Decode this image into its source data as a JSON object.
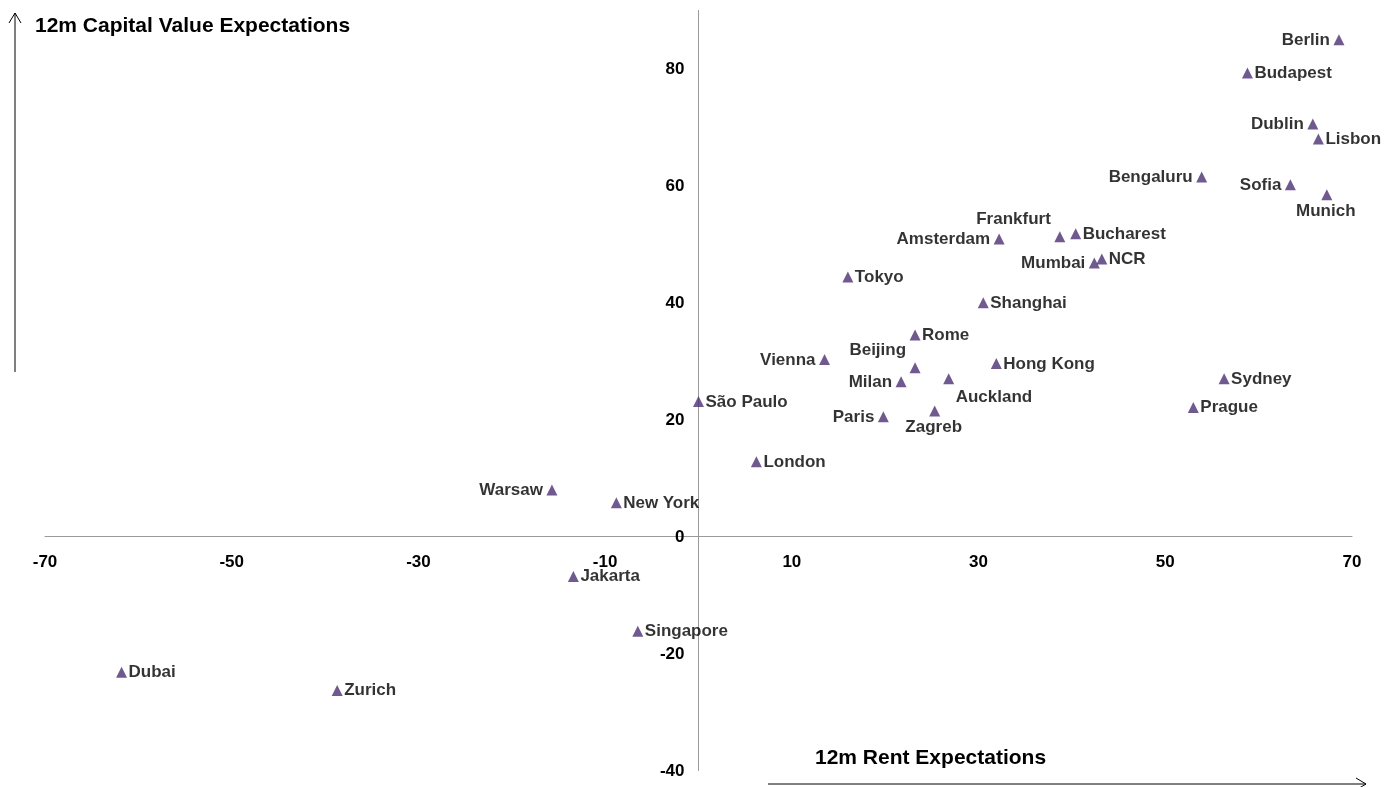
{
  "chart_data": {
    "type": "scatter",
    "xlabel": "12m Rent Expectations",
    "ylabel": "12m Capital Value Expectations",
    "x": [
      68.6,
      58.8,
      65.8,
      66.4,
      53.9,
      63.4,
      67.3,
      32.2,
      38.7,
      40.4,
      43.2,
      42.4,
      16.0,
      30.5,
      23.2,
      23.2,
      31.9,
      26.8,
      13.5,
      21.7,
      19.8,
      25.3,
      56.3,
      53.0,
      0.0,
      6.2,
      -15.7,
      -8.8,
      -13.4,
      -6.5,
      -61.8,
      -38.7
    ],
    "values": [
      85.0,
      79.3,
      70.6,
      68.0,
      61.5,
      60.2,
      58.5,
      50.9,
      51.3,
      51.8,
      47.5,
      46.8,
      44.4,
      40.0,
      34.5,
      28.9,
      29.6,
      27.0,
      30.3,
      26.5,
      20.5,
      21.5,
      27.0,
      22.1,
      23.1,
      12.8,
      8.0,
      5.8,
      -6.8,
      -16.2,
      -23.2,
      -26.3
    ],
    "value_labels": [
      "Berlin",
      "Budapest",
      "Dublin",
      "Lisbon",
      "Bengaluru",
      "Sofia",
      "Munich",
      "Amsterdam",
      "Frankfurt",
      "Bucharest",
      "NCR",
      "Mumbai",
      "Tokyo",
      "Shanghai",
      "Rome",
      "Beijing",
      "Hong Kong",
      "Auckland",
      "Vienna",
      "Milan",
      "Paris",
      "Zagreb",
      "Sydney",
      "Prague",
      "São Paulo",
      "London",
      "Warsaw",
      "New York",
      "Jakarta",
      "Singapore",
      "Dubai",
      "Zurich"
    ],
    "color": "#4b2f73",
    "marker": "triangle",
    "xlim": [
      -70,
      70
    ],
    "xticks": [
      -70,
      -50,
      -30,
      -10,
      10,
      30,
      50,
      70
    ],
    "ylim": [
      -40,
      90
    ],
    "yticks": [
      -40,
      -20,
      0,
      20,
      40,
      60,
      80
    ],
    "grid": false
  }
}
